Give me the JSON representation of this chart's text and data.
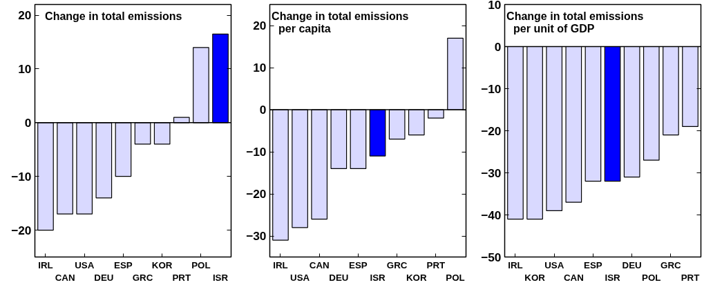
{
  "chart_data": [
    {
      "type": "bar",
      "title": "Change in total emissions",
      "categories": [
        "IRL",
        "CAN",
        "USA",
        "DEU",
        "ESP",
        "GRC",
        "KOR",
        "PRT",
        "POL",
        "ISR"
      ],
      "values": [
        -20,
        -17,
        -17,
        -14,
        -10,
        -4,
        -4,
        1,
        14,
        16.5
      ],
      "colors": [
        "#d9d9ff",
        "#d9d9ff",
        "#d9d9ff",
        "#d9d9ff",
        "#d9d9ff",
        "#d9d9ff",
        "#d9d9ff",
        "#d9d9ff",
        "#d9d9ff",
        "#0000ff"
      ],
      "ylim": [
        -25,
        22
      ],
      "yticks": [
        -20,
        -10,
        0,
        10,
        20
      ]
    },
    {
      "type": "bar",
      "title": "Change in total emissions",
      "subtitle": "per capita",
      "categories": [
        "IRL",
        "USA",
        "CAN",
        "DEU",
        "ESP",
        "ISR",
        "GRC",
        "KOR",
        "PRT",
        "POL"
      ],
      "values": [
        -31,
        -28,
        -26,
        -14,
        -14,
        -11,
        -7,
        -6,
        -2,
        17
      ],
      "colors": [
        "#d9d9ff",
        "#d9d9ff",
        "#d9d9ff",
        "#d9d9ff",
        "#d9d9ff",
        "#0000ff",
        "#d9d9ff",
        "#d9d9ff",
        "#d9d9ff",
        "#d9d9ff"
      ],
      "ylim": [
        -35,
        25
      ],
      "yticks": [
        -30,
        -20,
        -10,
        0,
        10,
        20
      ]
    },
    {
      "type": "bar",
      "title": "Change in total emissions",
      "subtitle": "per unit of GDP",
      "categories": [
        "IRL",
        "KOR",
        "USA",
        "CAN",
        "ESP",
        "ISR",
        "DEU",
        "POL",
        "GRC",
        "PRT"
      ],
      "values": [
        -41,
        -41,
        -39,
        -37,
        -32,
        -32,
        -31,
        -27,
        -21,
        -19
      ],
      "colors": [
        "#d9d9ff",
        "#d9d9ff",
        "#d9d9ff",
        "#d9d9ff",
        "#d9d9ff",
        "#0000ff",
        "#d9d9ff",
        "#d9d9ff",
        "#d9d9ff",
        "#d9d9ff"
      ],
      "ylim": [
        -50,
        10
      ],
      "yticks": [
        -50,
        -40,
        -30,
        -20,
        -10,
        0,
        10
      ]
    }
  ]
}
